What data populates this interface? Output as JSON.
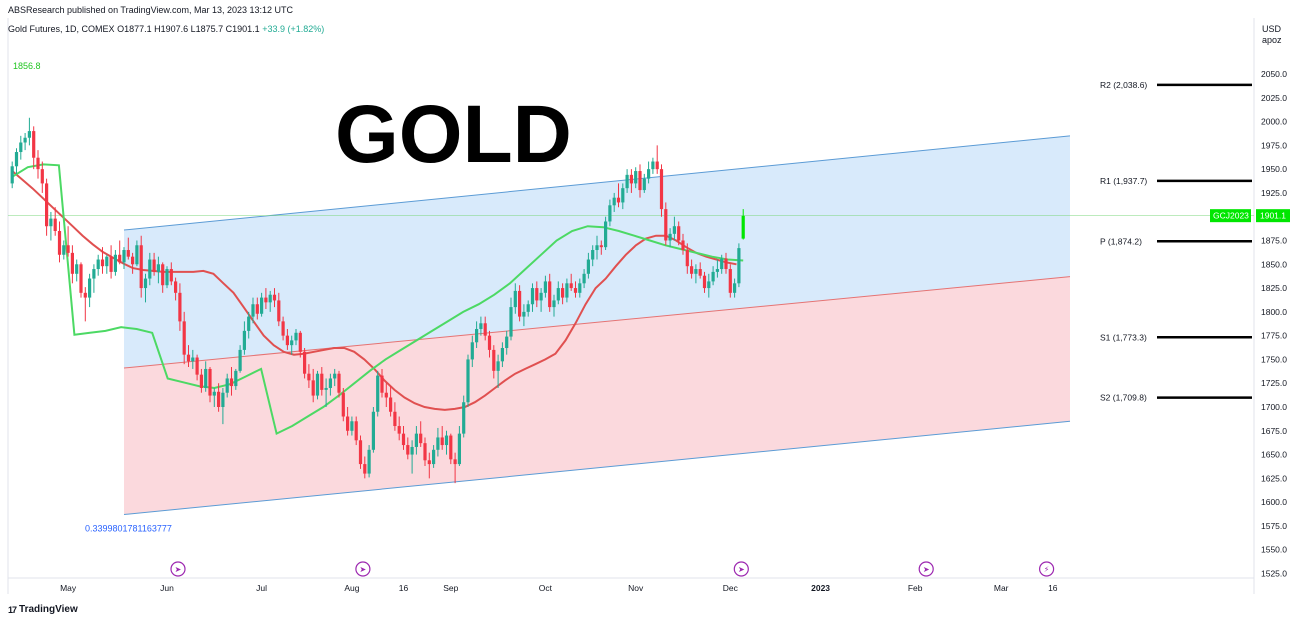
{
  "header": {
    "publisher": "ABSResearch published on TradingView.com, Mar 13, 2023 13:12 UTC",
    "symbol": "Gold Futures, 1D, COMEX",
    "ohlc": "O1877.1 H1907.6 L1875.7 C1901.1",
    "change": "+33.9 (+1.82%)"
  },
  "currency": [
    "USD",
    "apoz"
  ],
  "brand": {
    "logo": "17",
    "name": "TradingView"
  },
  "colors": {
    "up": "#22ab94",
    "down": "#f23645",
    "upBright": "#00e600",
    "channelLine": "#5b9bd5",
    "upperFill": "#d4e8fb",
    "lowerFill": "#fbd5d9",
    "maRed": "#e05050",
    "maGreen": "#4cd964",
    "pivot": "#000000",
    "accent": "#9c27b0"
  },
  "chart_data": {
    "type": "candlestick",
    "title": "GOLD",
    "ylim": [
      1520,
      2060
    ],
    "yticks": [
      1525,
      1550,
      1575,
      1600,
      1625,
      1650,
      1675,
      1700,
      1725,
      1750,
      1775,
      1800,
      1825,
      1850,
      1875,
      1900,
      1925,
      1950,
      1975,
      2000,
      2025,
      2050
    ],
    "xticks": [
      {
        "label": "May",
        "bar": 13
      },
      {
        "label": "Jun",
        "bar": 36
      },
      {
        "label": "Jul",
        "bar": 58
      },
      {
        "label": "Aug",
        "bar": 79
      },
      {
        "label": "16",
        "bar": 91
      },
      {
        "label": "Sep",
        "bar": 102
      },
      {
        "label": "Oct",
        "bar": 124
      },
      {
        "label": "Nov",
        "bar": 145
      },
      {
        "label": "Dec",
        "bar": 167
      },
      {
        "label": "2023",
        "bar": 188
      },
      {
        "label": "Feb",
        "bar": 210
      },
      {
        "label": "Mar",
        "bar": 230
      },
      {
        "label": "16",
        "bar": 242
      }
    ],
    "candles": [
      [
        1935,
        1958,
        1930,
        1953
      ],
      [
        1953,
        1972,
        1945,
        1968
      ],
      [
        1968,
        1985,
        1960,
        1978
      ],
      [
        1978,
        1988,
        1970,
        1983
      ],
      [
        1983,
        2004,
        1975,
        1990
      ],
      [
        1990,
        1995,
        1950,
        1962
      ],
      [
        1962,
        1970,
        1940,
        1950
      ],
      [
        1950,
        1958,
        1925,
        1935
      ],
      [
        1935,
        1940,
        1880,
        1890
      ],
      [
        1890,
        1905,
        1875,
        1898
      ],
      [
        1898,
        1910,
        1880,
        1885
      ],
      [
        1885,
        1895,
        1852,
        1860
      ],
      [
        1860,
        1875,
        1855,
        1870
      ],
      [
        1870,
        1890,
        1858,
        1862
      ],
      [
        1862,
        1870,
        1830,
        1840
      ],
      [
        1840,
        1855,
        1832,
        1850
      ],
      [
        1850,
        1852,
        1815,
        1820
      ],
      [
        1820,
        1826,
        1790,
        1815
      ],
      [
        1815,
        1840,
        1805,
        1835
      ],
      [
        1835,
        1850,
        1820,
        1845
      ],
      [
        1845,
        1860,
        1838,
        1855
      ],
      [
        1855,
        1868,
        1840,
        1848
      ],
      [
        1848,
        1860,
        1840,
        1858
      ],
      [
        1858,
        1870,
        1835,
        1842
      ],
      [
        1842,
        1865,
        1838,
        1860
      ],
      [
        1860,
        1875,
        1850,
        1852
      ],
      [
        1852,
        1868,
        1845,
        1865
      ],
      [
        1865,
        1878,
        1855,
        1858
      ],
      [
        1858,
        1862,
        1840,
        1850
      ],
      [
        1850,
        1875,
        1848,
        1870
      ],
      [
        1870,
        1880,
        1815,
        1825
      ],
      [
        1825,
        1840,
        1810,
        1835
      ],
      [
        1835,
        1862,
        1828,
        1855
      ],
      [
        1855,
        1862,
        1838,
        1842
      ],
      [
        1842,
        1858,
        1830,
        1850
      ],
      [
        1850,
        1852,
        1820,
        1828
      ],
      [
        1828,
        1848,
        1825,
        1845
      ],
      [
        1845,
        1852,
        1828,
        1832
      ],
      [
        1832,
        1836,
        1812,
        1820
      ],
      [
        1820,
        1830,
        1780,
        1790
      ],
      [
        1790,
        1800,
        1745,
        1755
      ],
      [
        1755,
        1765,
        1742,
        1748
      ],
      [
        1748,
        1760,
        1740,
        1752
      ],
      [
        1752,
        1755,
        1728,
        1734
      ],
      [
        1734,
        1740,
        1715,
        1720
      ],
      [
        1720,
        1748,
        1716,
        1740
      ],
      [
        1740,
        1742,
        1705,
        1712
      ],
      [
        1712,
        1720,
        1700,
        1716
      ],
      [
        1716,
        1725,
        1695,
        1700
      ],
      [
        1700,
        1720,
        1682,
        1715
      ],
      [
        1715,
        1735,
        1710,
        1730
      ],
      [
        1730,
        1742,
        1712,
        1722
      ],
      [
        1722,
        1740,
        1718,
        1738
      ],
      [
        1738,
        1765,
        1736,
        1760
      ],
      [
        1760,
        1790,
        1755,
        1780
      ],
      [
        1780,
        1800,
        1772,
        1795
      ],
      [
        1795,
        1815,
        1788,
        1808
      ],
      [
        1808,
        1815,
        1792,
        1798
      ],
      [
        1798,
        1820,
        1795,
        1815
      ],
      [
        1815,
        1825,
        1803,
        1810
      ],
      [
        1810,
        1822,
        1800,
        1818
      ],
      [
        1818,
        1825,
        1805,
        1812
      ],
      [
        1812,
        1820,
        1785,
        1790
      ],
      [
        1790,
        1795,
        1770,
        1775
      ],
      [
        1775,
        1782,
        1760,
        1765
      ],
      [
        1765,
        1775,
        1755,
        1770
      ],
      [
        1770,
        1782,
        1765,
        1778
      ],
      [
        1778,
        1780,
        1752,
        1758
      ],
      [
        1758,
        1762,
        1730,
        1735
      ],
      [
        1735,
        1745,
        1720,
        1728
      ],
      [
        1728,
        1740,
        1705,
        1712
      ],
      [
        1712,
        1738,
        1708,
        1735
      ],
      [
        1735,
        1742,
        1712,
        1718
      ],
      [
        1718,
        1730,
        1700,
        1720
      ],
      [
        1720,
        1735,
        1712,
        1730
      ],
      [
        1730,
        1740,
        1722,
        1735
      ],
      [
        1735,
        1738,
        1710,
        1715
      ],
      [
        1715,
        1720,
        1685,
        1690
      ],
      [
        1690,
        1700,
        1670,
        1675
      ],
      [
        1675,
        1690,
        1670,
        1685
      ],
      [
        1685,
        1690,
        1660,
        1665
      ],
      [
        1665,
        1670,
        1635,
        1640
      ],
      [
        1640,
        1648,
        1625,
        1630
      ],
      [
        1630,
        1660,
        1626,
        1655
      ],
      [
        1655,
        1700,
        1652,
        1695
      ],
      [
        1695,
        1738,
        1690,
        1733
      ],
      [
        1733,
        1740,
        1710,
        1715
      ],
      [
        1715,
        1725,
        1700,
        1710
      ],
      [
        1710,
        1722,
        1690,
        1695
      ],
      [
        1695,
        1705,
        1675,
        1680
      ],
      [
        1680,
        1690,
        1665,
        1672
      ],
      [
        1672,
        1680,
        1655,
        1660
      ],
      [
        1660,
        1668,
        1645,
        1650
      ],
      [
        1650,
        1665,
        1630,
        1658
      ],
      [
        1658,
        1680,
        1650,
        1672
      ],
      [
        1672,
        1685,
        1658,
        1662
      ],
      [
        1662,
        1668,
        1638,
        1644
      ],
      [
        1644,
        1652,
        1625,
        1640
      ],
      [
        1640,
        1660,
        1636,
        1655
      ],
      [
        1655,
        1678,
        1648,
        1668
      ],
      [
        1668,
        1680,
        1655,
        1660
      ],
      [
        1660,
        1675,
        1650,
        1670
      ],
      [
        1670,
        1672,
        1640,
        1645
      ],
      [
        1645,
        1652,
        1620,
        1640
      ],
      [
        1640,
        1680,
        1638,
        1672
      ],
      [
        1672,
        1712,
        1668,
        1705
      ],
      [
        1705,
        1755,
        1700,
        1750
      ],
      [
        1750,
        1775,
        1742,
        1768
      ],
      [
        1768,
        1790,
        1762,
        1782
      ],
      [
        1782,
        1795,
        1775,
        1788
      ],
      [
        1788,
        1795,
        1770,
        1775
      ],
      [
        1775,
        1780,
        1752,
        1760
      ],
      [
        1760,
        1765,
        1730,
        1738
      ],
      [
        1738,
        1755,
        1720,
        1748
      ],
      [
        1748,
        1768,
        1742,
        1762
      ],
      [
        1762,
        1780,
        1755,
        1774
      ],
      [
        1774,
        1815,
        1770,
        1805
      ],
      [
        1805,
        1830,
        1798,
        1822
      ],
      [
        1822,
        1828,
        1790,
        1795
      ],
      [
        1795,
        1808,
        1785,
        1800
      ],
      [
        1800,
        1812,
        1795,
        1808
      ],
      [
        1808,
        1830,
        1800,
        1825
      ],
      [
        1825,
        1832,
        1805,
        1812
      ],
      [
        1812,
        1825,
        1800,
        1820
      ],
      [
        1820,
        1838,
        1815,
        1832
      ],
      [
        1832,
        1840,
        1800,
        1805
      ],
      [
        1805,
        1818,
        1795,
        1812
      ],
      [
        1812,
        1832,
        1808,
        1825
      ],
      [
        1825,
        1830,
        1808,
        1815
      ],
      [
        1815,
        1835,
        1810,
        1830
      ],
      [
        1830,
        1840,
        1822,
        1825
      ],
      [
        1825,
        1832,
        1815,
        1820
      ],
      [
        1820,
        1835,
        1815,
        1830
      ],
      [
        1830,
        1845,
        1825,
        1840
      ],
      [
        1840,
        1862,
        1835,
        1855
      ],
      [
        1855,
        1870,
        1848,
        1865
      ],
      [
        1865,
        1880,
        1855,
        1870
      ],
      [
        1870,
        1875,
        1860,
        1868
      ],
      [
        1868,
        1900,
        1865,
        1895
      ],
      [
        1895,
        1918,
        1890,
        1912
      ],
      [
        1912,
        1925,
        1905,
        1920
      ],
      [
        1920,
        1935,
        1910,
        1915
      ],
      [
        1915,
        1935,
        1908,
        1930
      ],
      [
        1930,
        1950,
        1925,
        1944
      ],
      [
        1944,
        1950,
        1925,
        1935
      ],
      [
        1935,
        1952,
        1930,
        1948
      ],
      [
        1948,
        1955,
        1920,
        1928
      ],
      [
        1928,
        1945,
        1925,
        1940
      ],
      [
        1940,
        1958,
        1935,
        1950
      ],
      [
        1950,
        1962,
        1945,
        1958
      ],
      [
        1958,
        1975,
        1945,
        1950
      ],
      [
        1950,
        1955,
        1900,
        1908
      ],
      [
        1908,
        1915,
        1870,
        1875
      ],
      [
        1875,
        1888,
        1868,
        1882
      ],
      [
        1882,
        1900,
        1875,
        1890
      ],
      [
        1890,
        1895,
        1870,
        1875
      ],
      [
        1875,
        1882,
        1860,
        1865
      ],
      [
        1865,
        1872,
        1840,
        1848
      ],
      [
        1848,
        1855,
        1835,
        1840
      ],
      [
        1840,
        1850,
        1830,
        1845
      ],
      [
        1845,
        1852,
        1835,
        1838
      ],
      [
        1838,
        1842,
        1820,
        1825
      ],
      [
        1825,
        1840,
        1815,
        1832
      ],
      [
        1832,
        1848,
        1828,
        1842
      ],
      [
        1842,
        1855,
        1836,
        1845
      ],
      [
        1845,
        1860,
        1840,
        1856
      ],
      [
        1856,
        1862,
        1840,
        1845
      ],
      [
        1845,
        1850,
        1815,
        1820
      ],
      [
        1820,
        1835,
        1815,
        1830
      ],
      [
        1830,
        1872,
        1826,
        1867
      ],
      [
        1877,
        1908,
        1876,
        1901
      ]
    ],
    "ma_red": [
      1948,
      1939,
      1930,
      1920,
      1910,
      1900,
      1890,
      1880,
      1871,
      1863,
      1857,
      1851,
      1846,
      1844,
      1843,
      1842,
      1842,
      1842,
      1842,
      1843,
      1840,
      1830,
      1820,
      1805,
      1790,
      1775,
      1765,
      1758,
      1755,
      1756,
      1758,
      1760,
      1762,
      1762,
      1758,
      1750,
      1740,
      1728,
      1718,
      1710,
      1704,
      1700,
      1698,
      1697,
      1698,
      1700,
      1705,
      1712,
      1720,
      1728,
      1735,
      1740,
      1745,
      1750,
      1756,
      1770,
      1788,
      1808,
      1825,
      1835,
      1848,
      1860,
      1870,
      1877,
      1880,
      1880,
      1875,
      1868,
      1862,
      1858,
      1855,
      1852,
      1850
    ],
    "ma_green": [
      1942,
      1952,
      1955,
      1954,
      1776,
      1778,
      1780,
      1784,
      1782,
      1778,
      1730,
      1726,
      1722,
      1720,
      1724,
      1732,
      1740,
      1672,
      1680,
      1690,
      1700,
      1712,
      1725,
      1738,
      1750,
      1760,
      1770,
      1780,
      1790,
      1800,
      1808,
      1818,
      1830,
      1845,
      1860,
      1875,
      1885,
      1890,
      1889,
      1885,
      1880,
      1875,
      1870,
      1866,
      1862,
      1858,
      1855,
      1854
    ],
    "channel": {
      "upper": [
        [
          26,
          1886
        ],
        [
          246,
          1985
        ]
      ],
      "middle": [
        [
          26,
          1741
        ],
        [
          246,
          1837
        ]
      ],
      "lower": [
        [
          26,
          1587
        ],
        [
          246,
          1685
        ]
      ]
    },
    "channel_start_label": "0.3399801781163777",
    "pivots": [
      {
        "label": "R2 (2,038.6)",
        "value": 2038.6
      },
      {
        "label": "R1 (1,937.7)",
        "value": 1937.7
      },
      {
        "label": "P (1,874.2)",
        "value": 1874.2
      },
      {
        "label": "S1 (1,773.3)",
        "value": 1773.3
      },
      {
        "label": "S2 (1,709.8)",
        "value": 1709.8
      }
    ],
    "annotations": {
      "topLeftPrice": "1856.8",
      "current": 1901.1,
      "symbolTag": "GCJ2023",
      "currentLabel": "1901.1"
    }
  }
}
